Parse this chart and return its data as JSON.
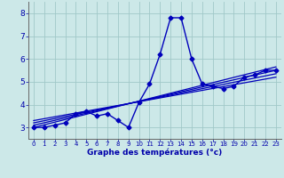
{
  "xlabel": "Graphe des températures (°c)",
  "xlim": [
    -0.5,
    23.5
  ],
  "ylim": [
    2.5,
    8.5
  ],
  "xticks": [
    0,
    1,
    2,
    3,
    4,
    5,
    6,
    7,
    8,
    9,
    10,
    11,
    12,
    13,
    14,
    15,
    16,
    17,
    18,
    19,
    20,
    21,
    22,
    23
  ],
  "yticks": [
    3,
    4,
    5,
    6,
    7,
    8
  ],
  "bg_color": "#cce8e8",
  "grid_color": "#a0c8c8",
  "line_color": "#0000bb",
  "series": [
    {
      "x": [
        0,
        1,
        2,
        3,
        4,
        5,
        6,
        7,
        8,
        9,
        10,
        11,
        12,
        13,
        14,
        15,
        16,
        17,
        18,
        19,
        20,
        21,
        22,
        23
      ],
      "y": [
        3.0,
        3.0,
        3.1,
        3.2,
        3.6,
        3.7,
        3.5,
        3.6,
        3.3,
        3.0,
        4.1,
        4.9,
        6.2,
        7.8,
        7.8,
        6.0,
        4.9,
        4.8,
        4.7,
        4.8,
        5.2,
        5.3,
        5.5,
        5.5
      ],
      "marker": "D",
      "markersize": 2.5,
      "linewidth": 1.0
    },
    {
      "x": [
        0,
        23
      ],
      "y": [
        3.0,
        5.65
      ],
      "marker": null,
      "linewidth": 0.9
    },
    {
      "x": [
        0,
        23
      ],
      "y": [
        3.1,
        5.5
      ],
      "marker": null,
      "linewidth": 0.9
    },
    {
      "x": [
        0,
        23
      ],
      "y": [
        3.2,
        5.35
      ],
      "marker": null,
      "linewidth": 0.9
    },
    {
      "x": [
        0,
        23
      ],
      "y": [
        3.3,
        5.2
      ],
      "marker": null,
      "linewidth": 0.9
    }
  ]
}
